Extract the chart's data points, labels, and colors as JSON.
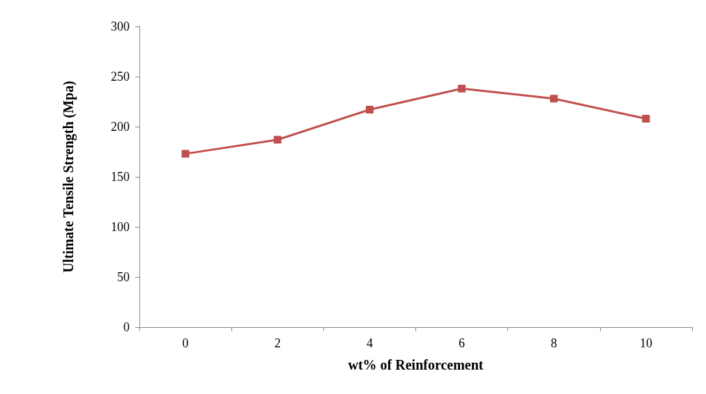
{
  "chart_data": {
    "type": "line",
    "xlabel": "wt% of Reinforcement",
    "ylabel": "Ultimate Tensile Strength (Mpa)",
    "categories": [
      "0",
      "2",
      "4",
      "6",
      "8",
      "10"
    ],
    "series": [
      {
        "color": "#c0504d",
        "values": [
          173,
          187,
          217,
          238,
          228,
          208
        ]
      }
    ],
    "ylim": [
      0,
      300
    ],
    "yticks": [
      0,
      50,
      100,
      150,
      200,
      250,
      300
    ],
    "grid": false,
    "marker": "square",
    "line_style": "solid"
  }
}
